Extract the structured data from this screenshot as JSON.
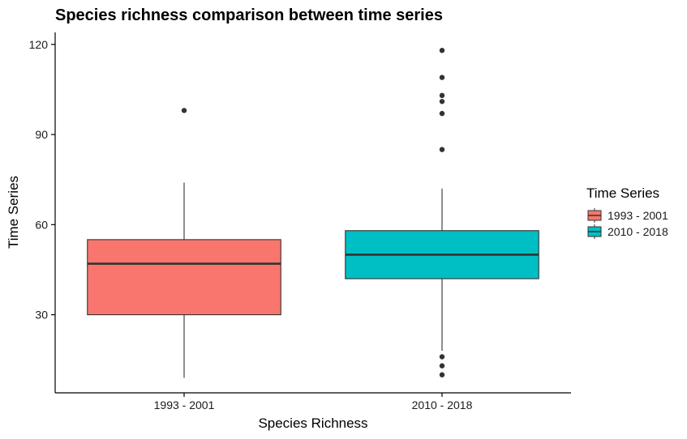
{
  "chart_data": {
    "type": "boxplot",
    "title": "Species richness comparison between time series",
    "xlabel": "Species Richness",
    "ylabel": "Time Series",
    "ylim": [
      4,
      124
    ],
    "yticks": [
      30,
      60,
      90,
      120
    ],
    "grid": false,
    "legend": {
      "title": "Time Series",
      "placement": "right",
      "entries": [
        "1993 - 2001",
        "2010 - 2018"
      ]
    },
    "categories": [
      "1993 - 2001",
      "2010 - 2018"
    ],
    "series": [
      {
        "name": "1993 - 2001",
        "color": "#F8766D",
        "whisker_low": 9,
        "q1": 30,
        "median": 47,
        "q3": 55,
        "whisker_high": 74,
        "outliers": [
          98
        ]
      },
      {
        "name": "2010 - 2018",
        "color": "#00BFC4",
        "whisker_low": 18,
        "q1": 42,
        "median": 50,
        "q3": 58,
        "whisker_high": 72,
        "outliers": [
          118,
          109,
          103,
          101,
          97,
          85,
          16,
          13,
          10
        ]
      }
    ]
  }
}
